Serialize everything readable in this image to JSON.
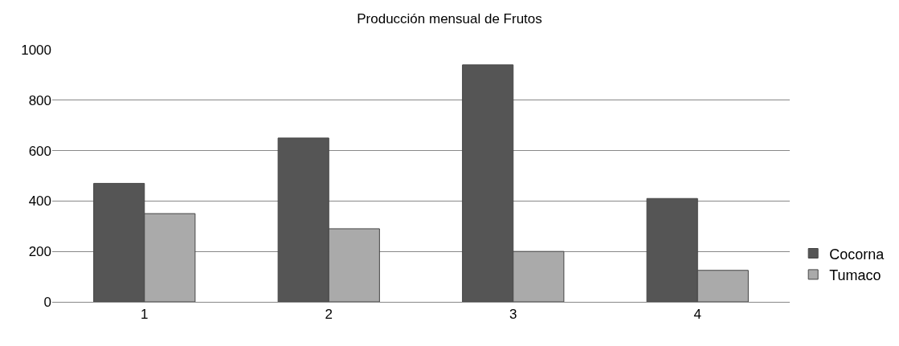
{
  "chart_data": {
    "type": "bar",
    "title": "Producción mensual de Frutos",
    "categories": [
      "1",
      "2",
      "3",
      "4"
    ],
    "series": [
      {
        "name": "Cocorna",
        "color": "#555555",
        "values": [
          470,
          650,
          940,
          410
        ]
      },
      {
        "name": "Tumaco",
        "color": "#aaaaaa",
        "values": [
          350,
          290,
          200,
          125
        ]
      }
    ],
    "ylim": [
      0,
      1000
    ],
    "yticks": [
      0,
      200,
      400,
      600,
      800,
      1000
    ],
    "grid": "y",
    "legend": "right"
  }
}
